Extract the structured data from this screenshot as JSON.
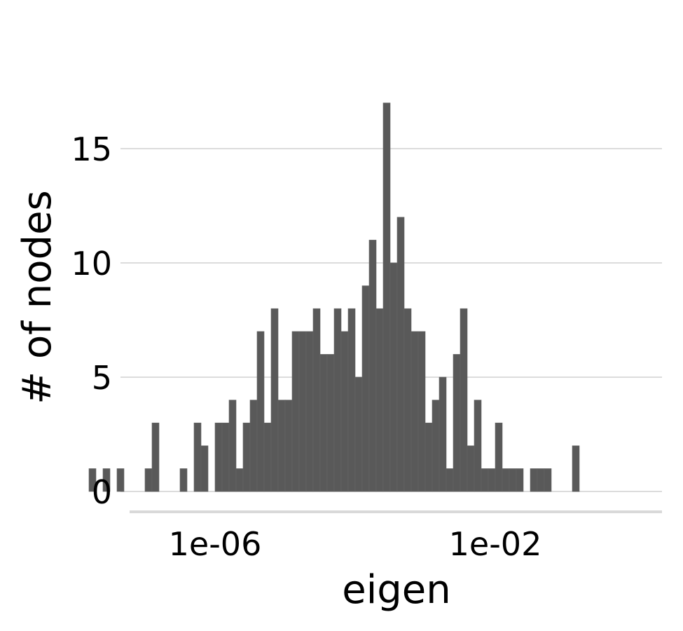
{
  "chart_data": {
    "type": "bar",
    "xlabel": "eigen",
    "ylabel": "# of nodes",
    "x_scale": "log10",
    "y_ticks": [
      "0",
      "5",
      "10",
      "15"
    ],
    "x_ticks": [
      "1e-06",
      "1e-02"
    ],
    "bin_start_exponent": -7.8,
    "bin_width_exponent": 0.1,
    "values": [
      1,
      0,
      1,
      0,
      1,
      0,
      0,
      0,
      1,
      3,
      0,
      0,
      0,
      1,
      0,
      3,
      2,
      0,
      3,
      3,
      4,
      1,
      3,
      4,
      7,
      3,
      8,
      4,
      4,
      7,
      7,
      7,
      8,
      6,
      6,
      8,
      7,
      8,
      5,
      9,
      11,
      8,
      17,
      10,
      12,
      8,
      7,
      7,
      3,
      4,
      5,
      1,
      6,
      8,
      2,
      4,
      1,
      1,
      3,
      1,
      1,
      1,
      0,
      1,
      1,
      1,
      0,
      0,
      0,
      2
    ],
    "ylim": [
      -0.85,
      17.6
    ],
    "grid": "horizontal",
    "bar_color": "#595959"
  }
}
